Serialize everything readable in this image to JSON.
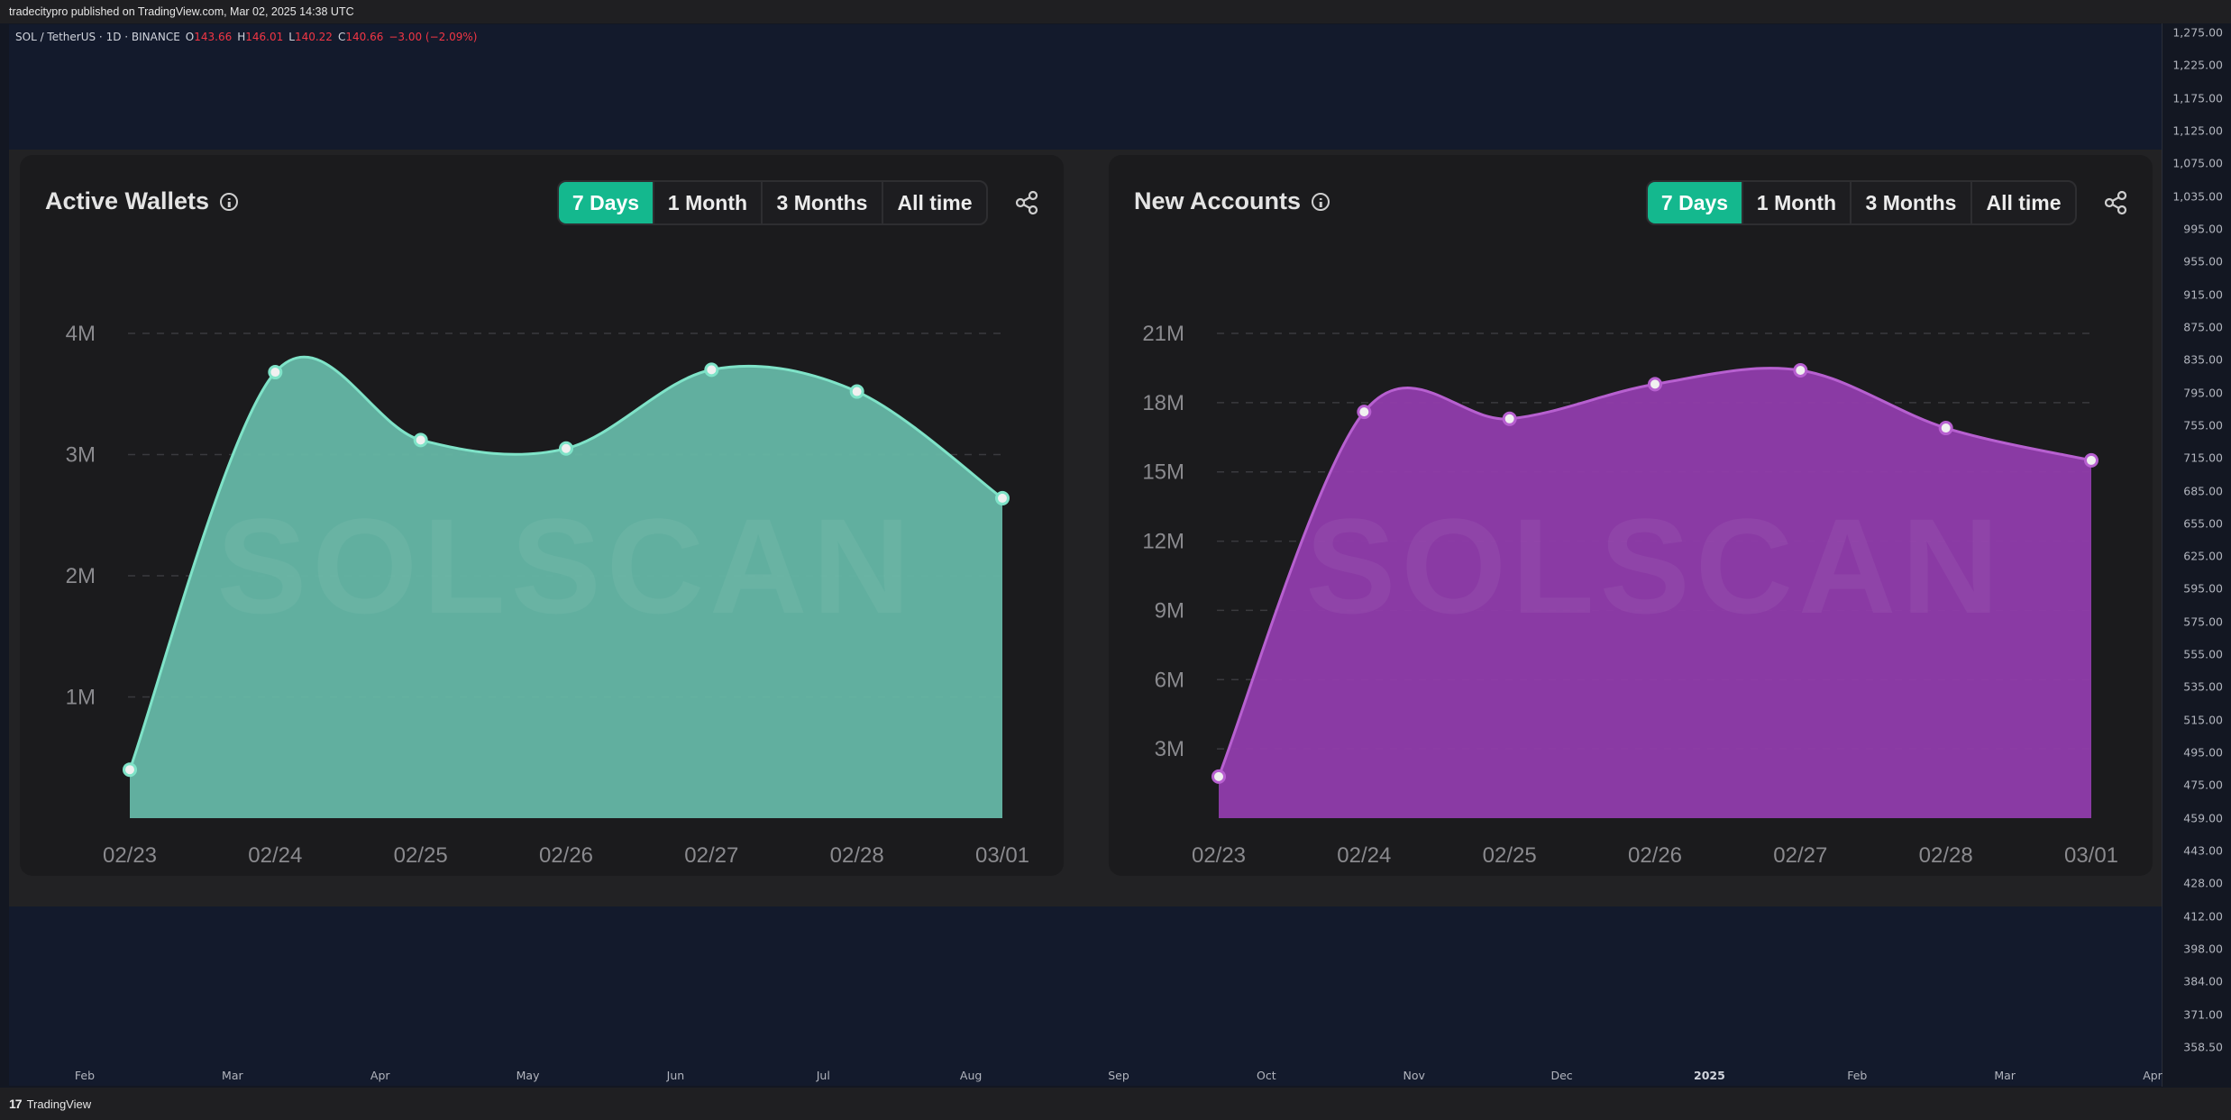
{
  "topbar": {
    "text": "tradecitypro published on TradingView.com, Mar 02, 2025 14:38 UTC"
  },
  "legend": {
    "symbol": "SOL / TetherUS · 1D · BINANCE",
    "o_label": "O",
    "o_value": "143.66",
    "h_label": "H",
    "h_value": "146.01",
    "l_label": "L",
    "l_value": "140.22",
    "c_label": "C",
    "c_value": "140.66",
    "change": "−3.00 (−2.09%)"
  },
  "price_axis": [
    "1,275.00",
    "1,225.00",
    "1,175.00",
    "1,125.00",
    "1,075.00",
    "1,035.00",
    "995.00",
    "955.00",
    "915.00",
    "875.00",
    "835.00",
    "795.00",
    "755.00",
    "715.00",
    "685.00",
    "655.00",
    "625.00",
    "595.00",
    "575.00",
    "555.00",
    "535.00",
    "515.00",
    "495.00",
    "475.00",
    "459.00",
    "443.00",
    "428.00",
    "412.00",
    "398.00",
    "384.00",
    "371.00",
    "358.50"
  ],
  "time_axis": [
    "Feb",
    "Mar",
    "Apr",
    "May",
    "Jun",
    "Jul",
    "Aug",
    "Sep",
    "Oct",
    "Nov",
    "Dec",
    "2025",
    "Feb",
    "Mar",
    "Apr"
  ],
  "bottombar": {
    "logo": "17",
    "brand": "TradingView"
  },
  "colors": {
    "teal": "#64b5a3",
    "teal_line": "#7fe3c8",
    "purple": "#8e3ca8",
    "purple_line": "#b760d0",
    "active_tab": "#14b88e"
  },
  "tabs": [
    "7 Days",
    "1 Month",
    "3 Months",
    "All time"
  ],
  "watermark": "SOLSCAN",
  "chart_data": [
    {
      "type": "area",
      "title": "Active Wallets",
      "x": [
        "02/23",
        "02/24",
        "02/25",
        "02/26",
        "02/27",
        "02/28",
        "03/01"
      ],
      "series": [
        {
          "values": [
            0.4,
            3.68,
            3.12,
            3.05,
            3.7,
            3.52,
            2.64
          ]
        }
      ],
      "yticks": [
        "1M",
        "2M",
        "3M",
        "4M"
      ],
      "ytick_values": [
        1,
        2,
        3,
        4
      ],
      "ylim": [
        0,
        4
      ],
      "grid": "dashed horizontal",
      "icon": "share-icon"
    },
    {
      "type": "area",
      "title": "New Accounts",
      "x": [
        "02/23",
        "02/24",
        "02/25",
        "02/26",
        "02/27",
        "02/28",
        "03/01"
      ],
      "series": [
        {
          "values": [
            1.8,
            17.6,
            17.3,
            18.8,
            19.4,
            16.9,
            15.5
          ]
        }
      ],
      "yticks": [
        "3M",
        "6M",
        "9M",
        "12M",
        "15M",
        "18M",
        "21M"
      ],
      "ytick_values": [
        3,
        6,
        9,
        12,
        15,
        18,
        21
      ],
      "ylim": [
        0,
        21
      ],
      "grid": "dashed horizontal",
      "icon": "share-icon"
    }
  ]
}
